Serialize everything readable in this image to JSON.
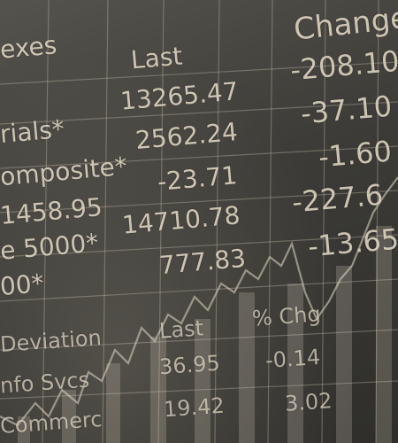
{
  "board": {
    "header_indexes": "exes",
    "header_last": "Last",
    "header_change": "Change",
    "rows_top": [
      {
        "name": "rials*",
        "last": "13265.47",
        "change": "-208.10"
      },
      {
        "name": "omposite*",
        "last": "2562.24",
        "change": "-37.10"
      },
      {
        "name": "1458.95",
        "last": "-23.71",
        "change": "-1.60"
      },
      {
        "name": "e 5000*",
        "last": "14710.78",
        "change": "-227.6"
      },
      {
        "name": "00*",
        "last": "777.83",
        "change": "-13.65"
      }
    ],
    "header2_last": "Last",
    "header2_pct": "% Chg",
    "rows_bottom": [
      {
        "name": "Deviation",
        "last": "",
        "pct": ""
      },
      {
        "name": "nfo Svcs",
        "last": "36.95",
        "pct": "-0.14"
      },
      {
        "name": "Commerc",
        "last": "19.42",
        "pct": "3.02"
      }
    ]
  },
  "colors": {
    "text": "#dcd3bf",
    "grid": "#cfc6b1",
    "chart": "#e4dcc8"
  }
}
